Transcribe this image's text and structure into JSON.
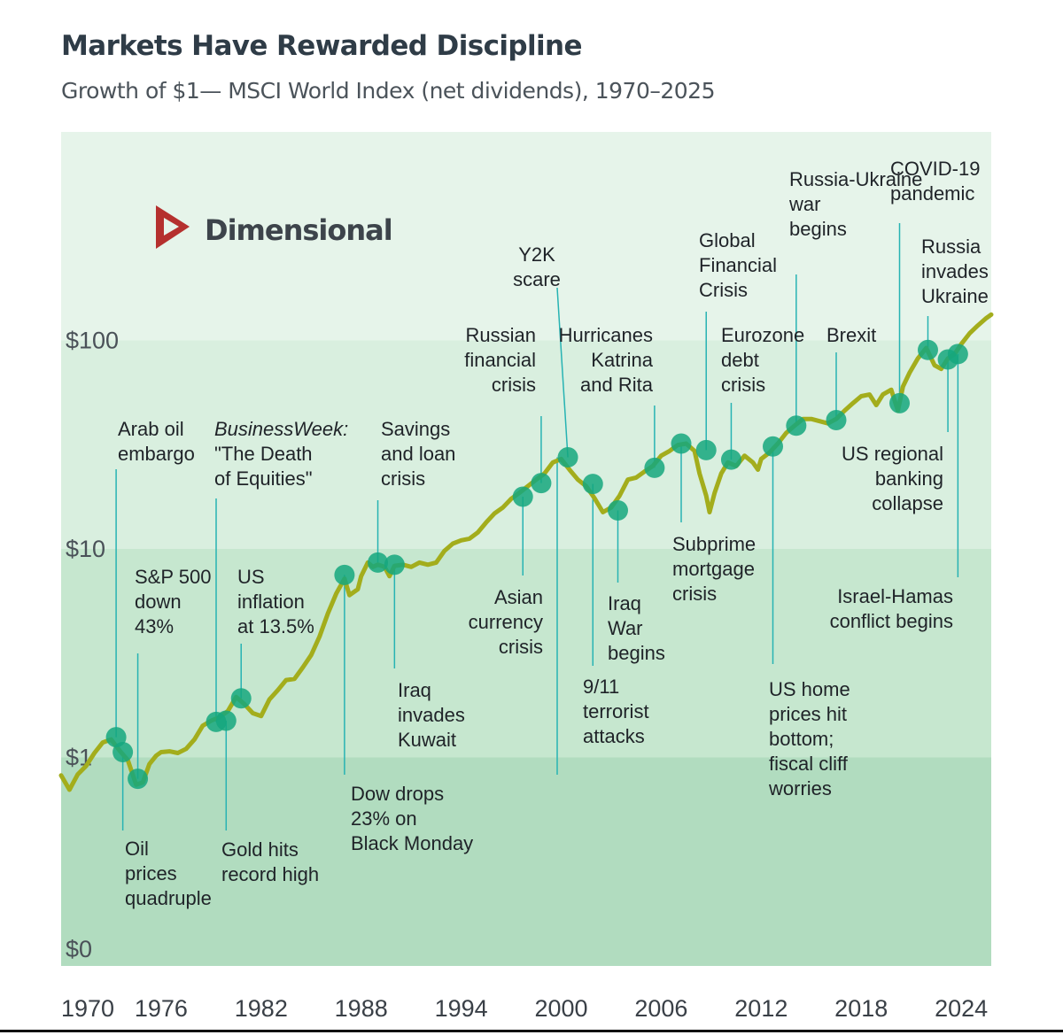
{
  "title": "Markets Have Rewarded Discipline",
  "subtitle": "Growth of $1— MSCI World Index (net dividends), 1970–2025",
  "logo": {
    "text": "Dimensional",
    "mark_color": "#b5302e"
  },
  "colors": {
    "band_top": "#e6f4ea",
    "band_2": "#d9efdf",
    "band_3": "#c6e7cf",
    "band_bottom": "#b1dcbf",
    "line": "#a3ad1c",
    "marker": "#15a77e",
    "leader": "#27b3b3"
  },
  "chart_data": {
    "type": "line",
    "title": "Markets Have Rewarded Discipline",
    "subtitle": "Growth of $1— MSCI World Index (net dividends), 1970–2025",
    "y_scale": "log",
    "y_ticks": [
      {
        "value": 0.1,
        "label": "$0"
      },
      {
        "value": 1,
        "label": "$1"
      },
      {
        "value": 10,
        "label": "$10"
      },
      {
        "value": 100,
        "label": "$100"
      }
    ],
    "x_ticks": [
      "1970",
      "1976",
      "1982",
      "1988",
      "1994",
      "2000",
      "2006",
      "2012",
      "2018",
      "2024"
    ],
    "xlim": [
      1970,
      2025.8
    ],
    "ylim": [
      0.1,
      1000
    ],
    "grid": false,
    "series": [
      {
        "values": [
          [
            1970.0,
            0.82
          ],
          [
            1970.5,
            0.7
          ],
          [
            1971.0,
            0.83
          ],
          [
            1971.5,
            0.91
          ],
          [
            1972.0,
            1.05
          ],
          [
            1972.5,
            1.18
          ],
          [
            1973.0,
            1.22
          ],
          [
            1973.5,
            1.08
          ],
          [
            1974.0,
            0.97
          ],
          [
            1974.5,
            0.74
          ],
          [
            1974.9,
            0.76
          ],
          [
            1975.3,
            0.93
          ],
          [
            1975.7,
            1.02
          ],
          [
            1976.0,
            1.06
          ],
          [
            1976.5,
            1.07
          ],
          [
            1977.0,
            1.05
          ],
          [
            1977.5,
            1.1
          ],
          [
            1978.0,
            1.22
          ],
          [
            1978.5,
            1.42
          ],
          [
            1979.0,
            1.5
          ],
          [
            1979.5,
            1.56
          ],
          [
            1980.0,
            1.67
          ],
          [
            1980.5,
            1.95
          ],
          [
            1981.0,
            1.8
          ],
          [
            1981.5,
            1.63
          ],
          [
            1982.0,
            1.58
          ],
          [
            1982.5,
            1.9
          ],
          [
            1983.0,
            2.1
          ],
          [
            1983.5,
            2.35
          ],
          [
            1984.0,
            2.38
          ],
          [
            1984.5,
            2.7
          ],
          [
            1985.0,
            3.1
          ],
          [
            1985.5,
            3.8
          ],
          [
            1986.0,
            4.9
          ],
          [
            1986.5,
            6.1
          ],
          [
            1987.0,
            7.2
          ],
          [
            1987.3,
            6.0
          ],
          [
            1987.8,
            6.4
          ],
          [
            1988.0,
            7.4
          ],
          [
            1988.4,
            8.6
          ],
          [
            1988.7,
            8.2
          ],
          [
            1989.0,
            8.4
          ],
          [
            1989.4,
            8.2
          ],
          [
            1989.7,
            7.4
          ],
          [
            1990.0,
            8.3
          ],
          [
            1990.5,
            8.4
          ],
          [
            1991.0,
            8.2
          ],
          [
            1991.5,
            8.6
          ],
          [
            1992.0,
            8.4
          ],
          [
            1992.5,
            8.6
          ],
          [
            1993.0,
            9.8
          ],
          [
            1993.5,
            10.6
          ],
          [
            1994.0,
            11.0
          ],
          [
            1994.5,
            11.2
          ],
          [
            1995.0,
            12.0
          ],
          [
            1995.5,
            13.4
          ],
          [
            1996.0,
            14.8
          ],
          [
            1996.5,
            15.8
          ],
          [
            1997.0,
            17.4
          ],
          [
            1997.5,
            18.6
          ],
          [
            1998.0,
            20.0
          ],
          [
            1998.5,
            21.5
          ],
          [
            1999.0,
            23.0
          ],
          [
            1999.5,
            26.0
          ],
          [
            2000.0,
            27.0
          ],
          [
            2000.5,
            24.0
          ],
          [
            2001.0,
            21.5
          ],
          [
            2001.5,
            20.0
          ],
          [
            2002.0,
            17.5
          ],
          [
            2002.5,
            15.0
          ],
          [
            2003.0,
            15.8
          ],
          [
            2003.5,
            18.0
          ],
          [
            2004.0,
            21.5
          ],
          [
            2004.5,
            22.0
          ],
          [
            2005.0,
            23.5
          ],
          [
            2005.5,
            25.0
          ],
          [
            2006.0,
            28.0
          ],
          [
            2006.5,
            29.5
          ],
          [
            2007.0,
            31.5
          ],
          [
            2007.5,
            32.0
          ],
          [
            2008.0,
            29.5
          ],
          [
            2008.3,
            23.0
          ],
          [
            2008.7,
            18.0
          ],
          [
            2008.9,
            15.0
          ],
          [
            2009.2,
            18.5
          ],
          [
            2009.6,
            23.0
          ],
          [
            2010.0,
            26.0
          ],
          [
            2010.5,
            25.0
          ],
          [
            2011.0,
            28.0
          ],
          [
            2011.5,
            26.0
          ],
          [
            2011.8,
            24.0
          ],
          [
            2012.0,
            27.0
          ],
          [
            2012.5,
            29.0
          ],
          [
            2013.0,
            32.0
          ],
          [
            2013.5,
            36.0
          ],
          [
            2014.0,
            39.0
          ],
          [
            2014.5,
            42.0
          ],
          [
            2015.0,
            42.0
          ],
          [
            2015.5,
            41.0
          ],
          [
            2016.0,
            40.0
          ],
          [
            2016.5,
            42.0
          ],
          [
            2017.0,
            46.0
          ],
          [
            2017.5,
            50.0
          ],
          [
            2018.0,
            54.0
          ],
          [
            2018.5,
            55.0
          ],
          [
            2018.9,
            49.0
          ],
          [
            2019.3,
            55.0
          ],
          [
            2019.8,
            58.0
          ],
          [
            2020.2,
            46.0
          ],
          [
            2020.5,
            60.0
          ],
          [
            2020.9,
            70.0
          ],
          [
            2021.4,
            82.0
          ],
          [
            2021.9,
            92.0
          ],
          [
            2022.4,
            76.0
          ],
          [
            2022.8,
            73.0
          ],
          [
            2023.2,
            82.0
          ],
          [
            2023.6,
            86.0
          ],
          [
            2024.0,
            96.0
          ],
          [
            2024.5,
            108.0
          ],
          [
            2025.0,
            118.0
          ],
          [
            2025.5,
            128.0
          ],
          [
            2025.8,
            133.0
          ]
        ]
      }
    ],
    "events": [
      {
        "label": "Arab oil embargo",
        "x": 1973.3,
        "y": 1.25
      },
      {
        "label": "Oil prices quadruple",
        "x": 1973.7,
        "y": 1.06
      },
      {
        "label": "S&P 500 down 43%",
        "x": 1974.6,
        "y": 0.79
      },
      {
        "label": "BusinessWeek: \"The Death of Equities\"",
        "x": 1979.3,
        "y": 1.48
      },
      {
        "label": "Gold hits record high",
        "x": 1979.9,
        "y": 1.5
      },
      {
        "label": "US inflation at 13.5%",
        "x": 1980.8,
        "y": 1.92
      },
      {
        "label": "Dow drops 23% on Black Monday",
        "x": 1987.0,
        "y": 7.5
      },
      {
        "label": "Savings and loan crisis",
        "x": 1989.0,
        "y": 8.6
      },
      {
        "label": "Iraq invades Kuwait",
        "x": 1990.0,
        "y": 8.4
      },
      {
        "label": "Asian currency crisis",
        "x": 1997.7,
        "y": 17.8
      },
      {
        "label": "Russian financial crisis",
        "x": 1998.8,
        "y": 20.7
      },
      {
        "label": "Y2K scare",
        "x": 2000.4,
        "y": 27.5
      },
      {
        "label": "9/11 terrorist attacks",
        "x": 2001.9,
        "y": 20.5
      },
      {
        "label": "Iraq War begins",
        "x": 2003.4,
        "y": 15.3
      },
      {
        "label": "Hurricanes Katrina and Rita",
        "x": 2005.6,
        "y": 24.5
      },
      {
        "label": "Subprime mortgage crisis",
        "x": 2007.2,
        "y": 32.0
      },
      {
        "label": "Global Financial Crisis",
        "x": 2008.7,
        "y": 29.8
      },
      {
        "label": "Eurozone debt crisis",
        "x": 2010.2,
        "y": 26.8
      },
      {
        "label": "US home prices hit bottom; fiscal cliff worries",
        "x": 2012.7,
        "y": 31.0
      },
      {
        "label": "Russia-Ukraine war begins",
        "x": 2014.1,
        "y": 39.0
      },
      {
        "label": "Brexit",
        "x": 2016.5,
        "y": 41.5
      },
      {
        "label": "COVID-19 pandemic",
        "x": 2020.3,
        "y": 50.0
      },
      {
        "label": "Russia invades Ukraine",
        "x": 2022.0,
        "y": 90.0
      },
      {
        "label": "US regional banking collapse",
        "x": 2023.2,
        "y": 81.0
      },
      {
        "label": "Israel-Hamas conflict begins",
        "x": 2023.8,
        "y": 86.0
      }
    ]
  }
}
